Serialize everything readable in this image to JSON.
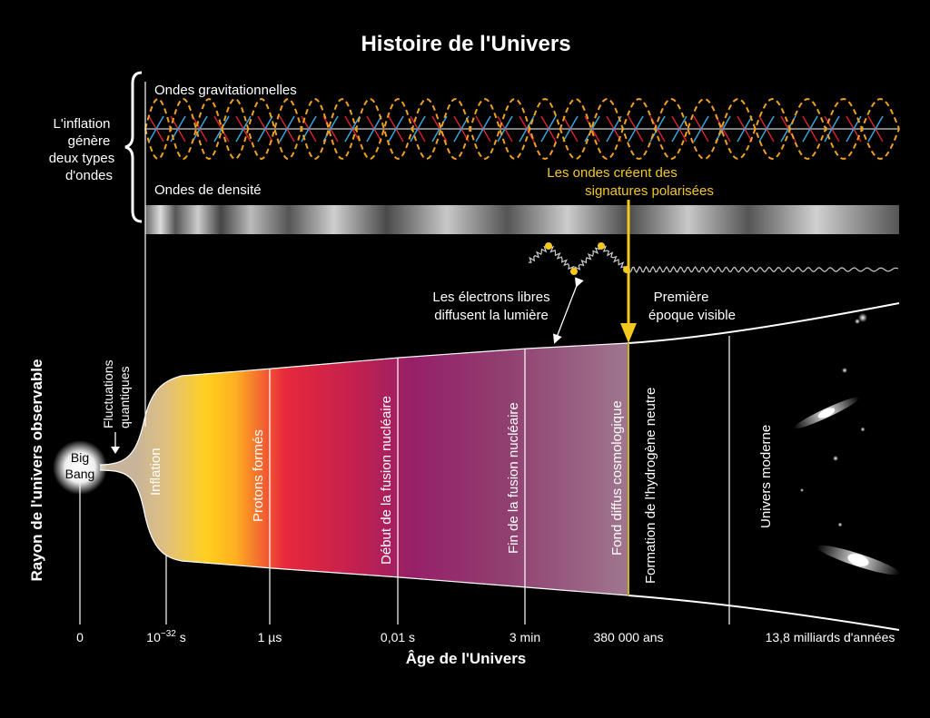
{
  "title": "Histoire de l'Univers",
  "colors": {
    "background": "#000000",
    "wave_orange": "#f0a020",
    "polarization_red": "#d21e32",
    "polarization_blue": "#37a5dc",
    "signature_yellow": "#f4c81e",
    "era_inflation": "#d8bc82",
    "era_protons": "#ffd41e",
    "era_nuclear": "#e6283c",
    "era_fusion": "#96206e",
    "era_cmb": "#a07088"
  },
  "labels": {
    "gravitational_waves": "Ondes gravitationnelles",
    "density_waves": "Ondes de densité",
    "inflation_note": [
      "L'inflation",
      "génère",
      "deux types",
      "d'ondes"
    ],
    "polarized": [
      "Les ondes créent des",
      "signatures polarisées"
    ],
    "electrons": [
      "Les électrons libres",
      "diffusent la lumière"
    ],
    "first_epoch": [
      "Première",
      "époque visible"
    ],
    "fluctuations": [
      "Fluctuations",
      "quantiques"
    ],
    "big_bang": [
      "Big",
      "Bang"
    ],
    "y_axis": "Rayon de l'univers observable",
    "x_axis": "Âge de l'Univers"
  },
  "eras": [
    {
      "label": "Inflation"
    },
    {
      "label": "Protons formés"
    },
    {
      "label": "Début de la fusion nucléaire"
    },
    {
      "label": "Fin de la fusion nucléaire"
    },
    {
      "label": "Fond diffus cosmologique"
    },
    {
      "label": "Formation de l'hydrogène neutre"
    },
    {
      "label": "Univers moderne"
    }
  ],
  "timeline_ticks": [
    {
      "base": "0",
      "sup": ""
    },
    {
      "base": "10",
      "sup": "−32",
      "suffix": " s"
    },
    {
      "base": "1 µs",
      "sup": ""
    },
    {
      "base": "0,01 s",
      "sup": ""
    },
    {
      "base": "3 min",
      "sup": ""
    },
    {
      "base": "380 000 ans",
      "sup": ""
    },
    {
      "base": "13,8 milliards d'années",
      "sup": ""
    }
  ]
}
